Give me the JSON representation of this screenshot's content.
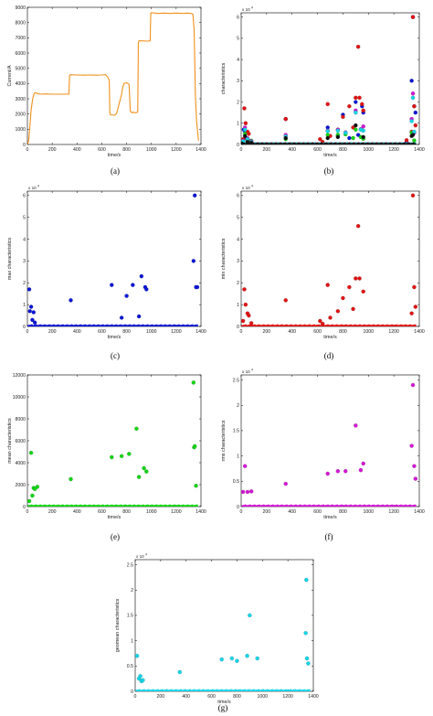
{
  "chart_data": [
    {
      "id": "a",
      "caption": "(a)",
      "type": "line",
      "xlabel": "time/s",
      "ylabel": "Current/A",
      "xlim": [
        0,
        1400
      ],
      "ylim": [
        0,
        9000
      ],
      "xticks": [
        0,
        200,
        400,
        600,
        800,
        1000,
        1200,
        1400
      ],
      "yticks": [
        0,
        1000,
        2000,
        3000,
        4000,
        5000,
        6000,
        7000,
        8000,
        9000
      ],
      "multiplier": "",
      "series": [
        {
          "color": "#f0901a",
          "x": [
            0,
            10,
            20,
            30,
            40,
            45,
            55,
            65,
            80,
            100,
            150,
            200,
            250,
            300,
            335,
            340,
            345,
            400,
            450,
            500,
            550,
            600,
            630,
            650,
            660,
            665,
            670,
            700,
            710,
            720,
            760,
            770,
            780,
            800,
            820,
            830,
            840,
            845,
            850,
            870,
            885,
            890,
            895,
            900,
            930,
            970,
            990,
            995,
            1000,
            1050,
            1100,
            1150,
            1200,
            1250,
            1290,
            1320,
            1335,
            1345,
            1355,
            1365,
            1380
          ],
          "y": [
            0,
            250,
            1200,
            2250,
            2850,
            3100,
            3350,
            3400,
            3350,
            3300,
            3320,
            3300,
            3300,
            3300,
            3310,
            4500,
            4580,
            4560,
            4550,
            4560,
            4550,
            4560,
            4580,
            4400,
            4200,
            2100,
            1950,
            1920,
            1950,
            2050,
            3300,
            3800,
            4000,
            4050,
            3950,
            2200,
            2100,
            2080,
            2120,
            2080,
            2100,
            2200,
            6700,
            6800,
            6800,
            6780,
            6800,
            8600,
            8650,
            8600,
            8620,
            8600,
            8620,
            8600,
            8620,
            8600,
            8550,
            7500,
            3200,
            1500,
            250
          ]
        }
      ]
    },
    {
      "id": "b",
      "caption": "(b)",
      "type": "scatter",
      "xlabel": "time/s",
      "ylabel": "characteristics",
      "xlim": [
        0,
        1400
      ],
      "ylim": [
        0,
        62000
      ],
      "xticks": [
        0,
        200,
        400,
        600,
        800,
        1000,
        1200,
        1400
      ],
      "yticks": [
        0,
        10000,
        20000,
        30000,
        40000,
        50000,
        60000
      ],
      "ytick_labels": [
        "0",
        "1",
        "2",
        "3",
        "4",
        "5",
        "6"
      ],
      "multiplier": "x 10",
      "multiplier_exp": "4",
      "series": [
        {
          "color": "#0a16d6",
          "name": "",
          "x": [
            15,
            20,
            30,
            40,
            50,
            60,
            350,
            680,
            760,
            800,
            850,
            900,
            920,
            950,
            960,
            1300,
            1340,
            1350,
            1360,
            1370
          ],
          "y": [
            2000,
            7000,
            6200,
            3000,
            2500,
            1800,
            12000,
            8000,
            4000,
            14000,
            3000,
            20000,
            4500,
            18000,
            15000,
            1000,
            30000,
            60000,
            18000,
            15000
          ]
        },
        {
          "color": "#e21212",
          "name": "",
          "x": [
            15,
            25,
            35,
            50,
            60,
            80,
            350,
            620,
            640,
            680,
            700,
            760,
            800,
            850,
            880,
            900,
            920,
            930,
            950,
            960,
            1300,
            1340,
            1350,
            1360,
            1370
          ],
          "y": [
            2500,
            17000,
            10000,
            6000,
            5000,
            1500,
            12000,
            2500,
            1200,
            19000,
            4000,
            7000,
            13000,
            18000,
            8000,
            22000,
            46000,
            22000,
            19000,
            16000,
            2000,
            6000,
            60000,
            18000,
            9000
          ]
        },
        {
          "color": "#12d612",
          "name": "",
          "x": [
            15,
            30,
            50,
            80,
            350,
            680,
            760,
            820,
            880,
            900,
            940,
            960,
            1340,
            1350,
            1360
          ],
          "y": [
            500,
            5000,
            1700,
            1800,
            2500,
            4500,
            4600,
            4800,
            3000,
            7000,
            3500,
            2700,
            5500,
            5500,
            1900
          ]
        },
        {
          "color": "#d616d6",
          "name": "",
          "x": [
            15,
            30,
            50,
            80,
            350,
            680,
            760,
            820,
            900,
            940,
            960,
            1340,
            1350,
            1360
          ],
          "y": [
            1800,
            8000,
            2900,
            1500,
            4500,
            6500,
            7000,
            5700,
            16000,
            7200,
            8500,
            12000,
            24000,
            5500
          ]
        },
        {
          "color": "#12d6e8",
          "name": "",
          "x": [
            15,
            30,
            50,
            80,
            350,
            680,
            760,
            820,
            900,
            940,
            960,
            1340,
            1350,
            1360
          ],
          "y": [
            1500,
            7000,
            2500,
            1200,
            3800,
            6300,
            6500,
            5500,
            15000,
            7000,
            6500,
            11000,
            22000,
            6000
          ]
        },
        {
          "color": "#111111",
          "name": "",
          "x": [
            5,
            30,
            50,
            80,
            350,
            680,
            760,
            900,
            960,
            1340,
            1350
          ],
          "y": [
            500,
            4000,
            1200,
            800,
            3000,
            3000,
            3500,
            9000,
            3500,
            4000,
            4500
          ]
        }
      ]
    },
    {
      "id": "c",
      "caption": "(c)",
      "type": "scatter",
      "xlabel": "time/s",
      "ylabel": "max characteristics",
      "xlim": [
        0,
        1400
      ],
      "ylim": [
        0,
        62000
      ],
      "xticks": [
        0,
        200,
        400,
        600,
        800,
        1000,
        1200,
        1400
      ],
      "yticks": [
        0,
        10000,
        20000,
        30000,
        40000,
        50000,
        60000
      ],
      "ytick_labels": [
        "0",
        "1",
        "2",
        "3",
        "4",
        "5",
        "6"
      ],
      "multiplier": "x 10",
      "multiplier_exp": "4",
      "series": [
        {
          "color": "#0a16d6",
          "x": [
            15,
            20,
            30,
            40,
            50,
            60,
            350,
            680,
            760,
            800,
            850,
            900,
            920,
            950,
            960,
            1340,
            1350,
            1360,
            1370
          ],
          "y": [
            17000,
            7000,
            9000,
            3000,
            6500,
            1800,
            12000,
            19000,
            4000,
            14000,
            19000,
            4600,
            23000,
            18000,
            17000,
            30000,
            60000,
            18000,
            18000
          ]
        }
      ]
    },
    {
      "id": "d",
      "caption": "(d)",
      "type": "scatter",
      "xlabel": "time/s",
      "ylabel": "min characteristics",
      "xlim": [
        0,
        1400
      ],
      "ylim": [
        0,
        62000
      ],
      "xticks": [
        0,
        200,
        400,
        600,
        800,
        1000,
        1200,
        1400
      ],
      "yticks": [
        0,
        10000,
        20000,
        30000,
        40000,
        50000,
        60000
      ],
      "ytick_labels": [
        "0",
        "1",
        "2",
        "3",
        "4",
        "5",
        "6"
      ],
      "multiplier": "x 10",
      "multiplier_exp": "4",
      "series": [
        {
          "color": "#e21212",
          "x": [
            15,
            25,
            35,
            50,
            60,
            80,
            350,
            620,
            640,
            680,
            700,
            760,
            800,
            850,
            880,
            900,
            920,
            930,
            960,
            1340,
            1350,
            1360,
            1370
          ],
          "y": [
            2500,
            17000,
            10000,
            6000,
            5000,
            1500,
            12000,
            2500,
            1200,
            19000,
            4000,
            7000,
            13000,
            18000,
            8000,
            22000,
            46000,
            22000,
            16000,
            6000,
            60000,
            18000,
            9000
          ]
        }
      ]
    },
    {
      "id": "e",
      "caption": "(e)",
      "type": "scatter",
      "xlabel": "time/s",
      "ylabel": "mean characteristics",
      "xlim": [
        0,
        1400
      ],
      "ylim": [
        0,
        12000
      ],
      "xticks": [
        0,
        200,
        400,
        600,
        800,
        1000,
        1200,
        1400
      ],
      "yticks": [
        0,
        2000,
        4000,
        6000,
        8000,
        10000,
        12000
      ],
      "multiplier": "",
      "series": [
        {
          "color": "#12d612",
          "x": [
            15,
            30,
            40,
            50,
            60,
            80,
            350,
            680,
            760,
            820,
            880,
            900,
            940,
            960,
            1340,
            1345,
            1350,
            1360
          ],
          "y": [
            500,
            4900,
            1000,
            1700,
            1600,
            1800,
            2500,
            4500,
            4600,
            4800,
            7100,
            2700,
            3500,
            3200,
            11300,
            5400,
            5500,
            1900
          ]
        }
      ]
    },
    {
      "id": "f",
      "caption": "(f)",
      "type": "scatter",
      "xlabel": "time/s",
      "ylabel": "rms characteristics",
      "xlim": [
        0,
        1400
      ],
      "ylim": [
        0,
        26000
      ],
      "xticks": [
        0,
        200,
        400,
        600,
        800,
        1000,
        1200,
        1400
      ],
      "yticks": [
        0,
        5000,
        10000,
        15000,
        20000,
        25000
      ],
      "ytick_labels": [
        "0",
        "0.5",
        "1",
        "1.5",
        "2",
        "2.5"
      ],
      "multiplier": "x 10",
      "multiplier_exp": "4",
      "series": [
        {
          "color": "#d616d6",
          "x": [
            15,
            30,
            50,
            80,
            350,
            680,
            760,
            820,
            900,
            940,
            960,
            1340,
            1350,
            1360,
            1370
          ],
          "y": [
            2900,
            8000,
            2900,
            3000,
            4500,
            6500,
            7000,
            7000,
            16000,
            7200,
            8500,
            12000,
            24000,
            8000,
            5500
          ]
        }
      ]
    },
    {
      "id": "g",
      "caption": "(g)",
      "type": "scatter",
      "xlabel": "time/s",
      "ylabel": "geomean characteristics",
      "xlim": [
        0,
        1400
      ],
      "ylim": [
        0,
        26000
      ],
      "xticks": [
        0,
        200,
        400,
        600,
        800,
        1000,
        1200,
        1400
      ],
      "yticks": [
        0,
        5000,
        10000,
        15000,
        20000,
        25000
      ],
      "ytick_labels": [
        "0",
        "0.5",
        "1",
        "1.5",
        "2",
        "2.5"
      ],
      "multiplier": "x 10",
      "multiplier_exp": "4",
      "series": [
        {
          "color": "#12d6e8",
          "x": [
            15,
            30,
            40,
            50,
            60,
            350,
            680,
            760,
            800,
            880,
            900,
            960,
            1340,
            1345,
            1350,
            1360
          ],
          "y": [
            7000,
            2500,
            3000,
            2000,
            2200,
            3800,
            6300,
            6500,
            6000,
            7000,
            15000,
            6500,
            11500,
            22000,
            6500,
            5500
          ]
        }
      ]
    }
  ]
}
